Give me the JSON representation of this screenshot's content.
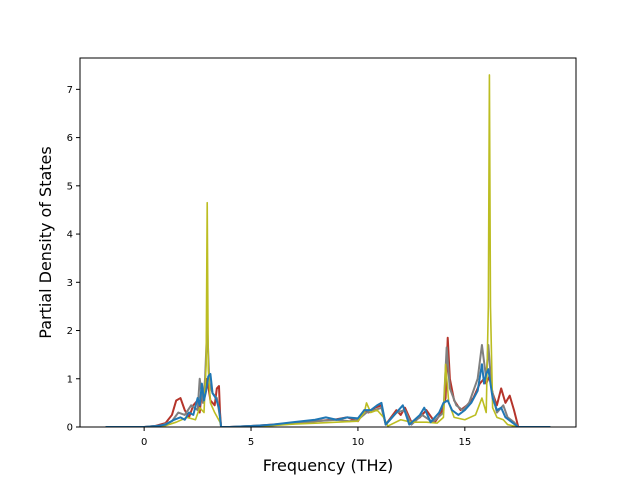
{
  "chart_data": {
    "type": "line",
    "title": "",
    "xlabel": "Frequency (THz)",
    "ylabel": "Partial Density of States",
    "xlim": [
      -3,
      20.2
    ],
    "ylim": [
      0,
      7.65
    ],
    "xticks": [
      0,
      5,
      10,
      15
    ],
    "yticks": [
      0,
      1,
      2,
      3,
      4,
      5,
      6,
      7
    ],
    "grid": false,
    "legend": "none",
    "series": [
      {
        "color": "#b5342a",
        "points": [
          [
            -1.8,
            0
          ],
          [
            0,
            0
          ],
          [
            0.5,
            0.02
          ],
          [
            1,
            0.08
          ],
          [
            1.3,
            0.25
          ],
          [
            1.5,
            0.55
          ],
          [
            1.7,
            0.6
          ],
          [
            1.9,
            0.35
          ],
          [
            2.1,
            0.2
          ],
          [
            2.3,
            0.45
          ],
          [
            2.5,
            0.55
          ],
          [
            2.6,
            0.3
          ],
          [
            2.7,
            0.75
          ],
          [
            2.8,
            0.55
          ],
          [
            2.9,
            1.0
          ],
          [
            3.0,
            0.85
          ],
          [
            3.1,
            0.55
          ],
          [
            3.3,
            0.45
          ],
          [
            3.4,
            0.8
          ],
          [
            3.5,
            0.85
          ],
          [
            3.55,
            0.3
          ],
          [
            3.6,
            0
          ],
          [
            4,
            0
          ],
          [
            5,
            0.02
          ],
          [
            6,
            0.05
          ],
          [
            7,
            0.08
          ],
          [
            8,
            0.12
          ],
          [
            9,
            0.16
          ],
          [
            9.5,
            0.2
          ],
          [
            10,
            0.12
          ],
          [
            10.3,
            0.35
          ],
          [
            10.5,
            0.3
          ],
          [
            10.8,
            0.4
          ],
          [
            11.1,
            0.45
          ],
          [
            11.3,
            0.05
          ],
          [
            11.8,
            0.35
          ],
          [
            12.0,
            0.25
          ],
          [
            12.2,
            0.4
          ],
          [
            12.5,
            0.1
          ],
          [
            12.9,
            0.2
          ],
          [
            13.2,
            0.35
          ],
          [
            13.6,
            0.1
          ],
          [
            13.9,
            0.3
          ],
          [
            14.1,
            0.6
          ],
          [
            14.2,
            1.85
          ],
          [
            14.3,
            1.0
          ],
          [
            14.5,
            0.55
          ],
          [
            14.8,
            0.35
          ],
          [
            15.1,
            0.45
          ],
          [
            15.4,
            0.6
          ],
          [
            15.7,
            0.9
          ],
          [
            15.9,
            1.0
          ],
          [
            16.0,
            0.9
          ],
          [
            16.15,
            1.05
          ],
          [
            16.3,
            0.7
          ],
          [
            16.5,
            0.45
          ],
          [
            16.7,
            0.8
          ],
          [
            16.9,
            0.5
          ],
          [
            17.1,
            0.65
          ],
          [
            17.3,
            0.35
          ],
          [
            17.5,
            0
          ],
          [
            19,
            0
          ]
        ]
      },
      {
        "color": "#808080",
        "points": [
          [
            -1.8,
            0
          ],
          [
            0,
            0
          ],
          [
            0.8,
            0.03
          ],
          [
            1.3,
            0.12
          ],
          [
            1.6,
            0.3
          ],
          [
            1.9,
            0.25
          ],
          [
            2.2,
            0.45
          ],
          [
            2.5,
            0.35
          ],
          [
            2.6,
            1.0
          ],
          [
            2.75,
            0.5
          ],
          [
            2.85,
            1.0
          ],
          [
            2.95,
            2.1
          ],
          [
            3.05,
            0.9
          ],
          [
            3.2,
            0.7
          ],
          [
            3.4,
            0.6
          ],
          [
            3.55,
            0.2
          ],
          [
            3.6,
            0
          ],
          [
            4,
            0
          ],
          [
            5,
            0.02
          ],
          [
            6,
            0.04
          ],
          [
            7,
            0.07
          ],
          [
            8,
            0.12
          ],
          [
            9,
            0.15
          ],
          [
            9.6,
            0.12
          ],
          [
            10,
            0.15
          ],
          [
            10.4,
            0.3
          ],
          [
            10.8,
            0.35
          ],
          [
            11.1,
            0.4
          ],
          [
            11.3,
            0.05
          ],
          [
            11.8,
            0.3
          ],
          [
            12.2,
            0.35
          ],
          [
            12.5,
            0.05
          ],
          [
            13.0,
            0.25
          ],
          [
            13.5,
            0.1
          ],
          [
            14.0,
            0.3
          ],
          [
            14.15,
            1.65
          ],
          [
            14.3,
            0.8
          ],
          [
            14.6,
            0.45
          ],
          [
            14.9,
            0.35
          ],
          [
            15.2,
            0.5
          ],
          [
            15.6,
            1.0
          ],
          [
            15.8,
            1.7
          ],
          [
            16.0,
            1.0
          ],
          [
            16.1,
            1.7
          ],
          [
            16.25,
            0.8
          ],
          [
            16.5,
            0.3
          ],
          [
            16.8,
            0.45
          ],
          [
            17.0,
            0.2
          ],
          [
            17.3,
            0.1
          ],
          [
            17.5,
            0
          ],
          [
            19,
            0
          ]
        ]
      },
      {
        "color": "#bcbd22",
        "points": [
          [
            -1.8,
            0
          ],
          [
            0,
            0
          ],
          [
            1,
            0.03
          ],
          [
            1.5,
            0.1
          ],
          [
            2.0,
            0.2
          ],
          [
            2.4,
            0.15
          ],
          [
            2.6,
            0.4
          ],
          [
            2.8,
            0.3
          ],
          [
            2.9,
            1.3
          ],
          [
            2.95,
            4.65
          ],
          [
            3.0,
            1.2
          ],
          [
            3.1,
            0.5
          ],
          [
            3.3,
            0.3
          ],
          [
            3.55,
            0.1
          ],
          [
            3.6,
            0
          ],
          [
            4,
            0
          ],
          [
            5,
            0.01
          ],
          [
            6,
            0.03
          ],
          [
            7,
            0.06
          ],
          [
            8,
            0.08
          ],
          [
            9,
            0.1
          ],
          [
            10,
            0.12
          ],
          [
            10.3,
            0.3
          ],
          [
            10.4,
            0.5
          ],
          [
            10.6,
            0.3
          ],
          [
            10.9,
            0.35
          ],
          [
            11.2,
            0.2
          ],
          [
            11.4,
            0.02
          ],
          [
            12,
            0.15
          ],
          [
            12.5,
            0.1
          ],
          [
            13.2,
            0.1
          ],
          [
            13.7,
            0.08
          ],
          [
            14.0,
            0.2
          ],
          [
            14.1,
            1.3
          ],
          [
            14.25,
            0.5
          ],
          [
            14.5,
            0.2
          ],
          [
            15,
            0.15
          ],
          [
            15.5,
            0.25
          ],
          [
            15.8,
            0.6
          ],
          [
            16.0,
            0.3
          ],
          [
            16.1,
            2.5
          ],
          [
            16.15,
            7.3
          ],
          [
            16.2,
            2.5
          ],
          [
            16.3,
            0.4
          ],
          [
            16.5,
            0.2
          ],
          [
            16.8,
            0.15
          ],
          [
            17,
            0.05
          ],
          [
            17.5,
            0
          ],
          [
            19,
            0
          ]
        ]
      },
      {
        "color": "#1f77b4",
        "points": [
          [
            -1.8,
            0
          ],
          [
            0,
            0
          ],
          [
            0.6,
            0.02
          ],
          [
            1.0,
            0.05
          ],
          [
            1.4,
            0.15
          ],
          [
            1.7,
            0.2
          ],
          [
            1.9,
            0.15
          ],
          [
            2.1,
            0.3
          ],
          [
            2.3,
            0.25
          ],
          [
            2.5,
            0.6
          ],
          [
            2.6,
            0.45
          ],
          [
            2.7,
            0.9
          ],
          [
            2.8,
            0.55
          ],
          [
            2.9,
            0.75
          ],
          [
            3.0,
            1.05
          ],
          [
            3.1,
            1.1
          ],
          [
            3.2,
            0.7
          ],
          [
            3.35,
            0.6
          ],
          [
            3.5,
            0.4
          ],
          [
            3.6,
            0
          ],
          [
            4,
            0
          ],
          [
            5,
            0.02
          ],
          [
            6,
            0.05
          ],
          [
            7,
            0.1
          ],
          [
            8,
            0.15
          ],
          [
            8.5,
            0.2
          ],
          [
            9,
            0.15
          ],
          [
            9.5,
            0.2
          ],
          [
            10,
            0.18
          ],
          [
            10.3,
            0.35
          ],
          [
            10.6,
            0.35
          ],
          [
            10.9,
            0.45
          ],
          [
            11.1,
            0.5
          ],
          [
            11.3,
            0.05
          ],
          [
            11.8,
            0.3
          ],
          [
            12.1,
            0.45
          ],
          [
            12.4,
            0.05
          ],
          [
            12.9,
            0.25
          ],
          [
            13.1,
            0.4
          ],
          [
            13.4,
            0.1
          ],
          [
            13.8,
            0.3
          ],
          [
            14.0,
            0.5
          ],
          [
            14.2,
            0.55
          ],
          [
            14.4,
            0.35
          ],
          [
            14.7,
            0.25
          ],
          [
            15.0,
            0.35
          ],
          [
            15.3,
            0.5
          ],
          [
            15.6,
            0.75
          ],
          [
            15.8,
            1.3
          ],
          [
            15.9,
            0.9
          ],
          [
            16.0,
            1.1
          ],
          [
            16.1,
            1.2
          ],
          [
            16.3,
            0.6
          ],
          [
            16.5,
            0.35
          ],
          [
            16.7,
            0.4
          ],
          [
            16.9,
            0.2
          ],
          [
            17.2,
            0.1
          ],
          [
            17.5,
            0
          ],
          [
            19,
            0
          ]
        ]
      }
    ]
  }
}
